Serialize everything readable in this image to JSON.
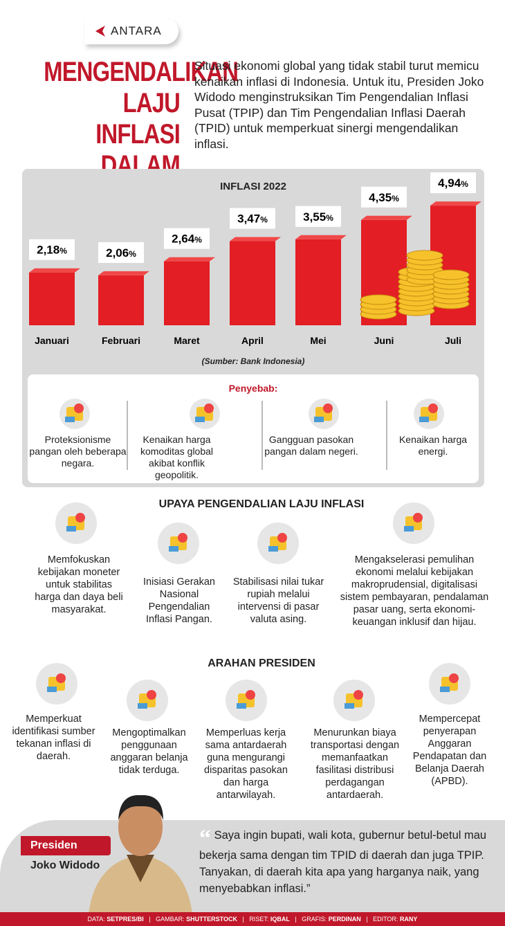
{
  "logo": "ANTARA",
  "title": [
    "MENGENDALIKAN",
    "LAJU INFLASI",
    "DALAM NEGERI"
  ],
  "intro": "Situasi ekonomi global yang tidak stabil turut memicu kenaikan inflasi di Indonesia. Untuk itu, Presiden Joko Widodo menginstruksikan Tim Pengendalian Inflasi Pusat (TPIP) dan Tim Pengendalian Inflasi Daerah (TPID) untuk memperkuat sinergi mengendalikan inflasi.",
  "chart_data": {
    "type": "bar",
    "title": "INFLASI 2022",
    "categories": [
      "Januari",
      "Februari",
      "Maret",
      "April",
      "Mei",
      "Juni",
      "Juli"
    ],
    "values": [
      2.18,
      2.06,
      2.64,
      3.47,
      3.55,
      4.35,
      4.94
    ],
    "data_labels": [
      "2,18",
      "2,06",
      "2,64",
      "3,47",
      "3,55",
      "4,35",
      "4,94"
    ],
    "unit": "%",
    "source": "(Sumber: Bank Indonesia)",
    "bar_color": "#e31e24",
    "grid": false
  },
  "causes": {
    "heading": "Penyebab:",
    "items": [
      {
        "icon": "globe-pin-icon",
        "text": "Proteksionisme pangan oleh beberapa negara."
      },
      {
        "icon": "commodity-sacks-icon",
        "text": "Kenaikan harga komoditas global akibat konflik geopolitik."
      },
      {
        "icon": "supply-network-icon",
        "text": "Gangguan pasokan pangan dalam negeri."
      },
      {
        "icon": "coins-arrow-up-icon",
        "text": "Kenaikan harga energi."
      }
    ]
  },
  "efforts": {
    "heading": "UPAYA PENGENDALIAN LAJU INFLASI",
    "items": [
      {
        "icon": "bank-moneybag-icon",
        "text": "Memfokuskan kebijakan moneter untuk stabilitas harga dan daya beli masyarakat."
      },
      {
        "icon": "food-basket-icon",
        "text": "Inisiasi Gerakan Nasional Pengendalian Inflasi Pangan."
      },
      {
        "icon": "currency-exchange-icon",
        "text": "Stabilisasi nilai tukar rupiah melalui intervensi di pasar valuta asing."
      },
      {
        "icon": "digital-payment-icon",
        "text": "Mengakselerasi pemulihan ekonomi melalui kebijakan makroprudensial, digitalisasi sistem pembayaran, pendalaman pasar uang, serta ekonomi-keuangan inklusif dan hijau."
      }
    ]
  },
  "directives": {
    "heading": "ARAHAN PRESIDEN",
    "items": [
      {
        "icon": "moneybag-chart-icon",
        "text": "Memperkuat identifikasi sumber tekanan inflasi di daerah."
      },
      {
        "icon": "calculator-budget-icon",
        "text": "Mengoptimalkan penggunaan anggaran belanja tidak terduga."
      },
      {
        "icon": "handshake-icon",
        "text": "Memperluas kerja sama antardaerah guna mengurangi disparitas pasokan dan harga antarwilayah."
      },
      {
        "icon": "truck-map-icon",
        "text": "Menurunkan biaya transportasi dengan memanfaatkan fasilitasi distribusi perdagangan antardaerah."
      },
      {
        "icon": "bar-chart-icon",
        "text": "Mempercepat penyerapan Anggaran Pendapatan dan Belanja Daerah (APBD)."
      }
    ]
  },
  "quote": {
    "role": "Presiden",
    "name": "Joko Widodo",
    "text": "Saya ingin bupati, wali kota, gubernur betul-betul mau bekerja sama dengan tim TPID di daerah dan juga TPIP. Tanyakan, di daerah kita apa yang harganya naik, yang menyebabkan inflasi.”"
  },
  "footer": [
    {
      "k": "DATA:",
      "v": "SETPRES/BI"
    },
    {
      "k": "GAMBAR:",
      "v": "SHUTTERSTOCK"
    },
    {
      "k": "RISET:",
      "v": "IQBAL"
    },
    {
      "k": "GRAFIS:",
      "v": "PERDINAN"
    },
    {
      "k": "EDITOR:",
      "v": "RANY"
    }
  ]
}
